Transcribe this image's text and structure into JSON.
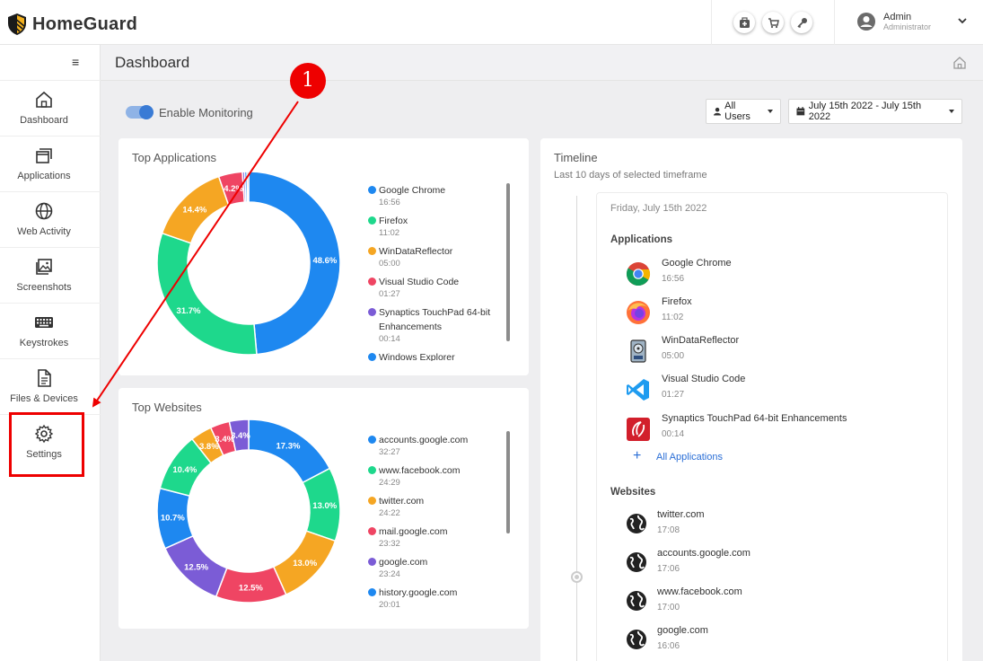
{
  "app": {
    "brand": "HomeGuard"
  },
  "header": {
    "icons": [
      "first-aid-icon",
      "cart-icon",
      "key-icon"
    ],
    "user": {
      "name": "Admin",
      "role": "Administrator"
    }
  },
  "sidebar": {
    "items": [
      {
        "label": "Dashboard",
        "icon": "home-icon"
      },
      {
        "label": "Applications",
        "icon": "windows-icon"
      },
      {
        "label": "Web Activity",
        "icon": "globe-icon"
      },
      {
        "label": "Screenshots",
        "icon": "image-icon"
      },
      {
        "label": "Keystrokes",
        "icon": "keyboard-icon"
      },
      {
        "label": "Files & Devices",
        "icon": "file-icon"
      },
      {
        "label": "Settings",
        "icon": "gear-icon"
      }
    ]
  },
  "page": {
    "title": "Dashboard"
  },
  "controls": {
    "monitoring_label": "Enable Monitoring",
    "users_dropdown": "All Users",
    "date_dropdown": "July 15th 2022 - July 15th 2022"
  },
  "top_applications": {
    "title": "Top Applications",
    "slices": [
      {
        "value": 48.6,
        "label": "48.6%",
        "color": "#1e88f0"
      },
      {
        "value": 31.7,
        "label": "31.7%",
        "color": "#1ed88c"
      },
      {
        "value": 14.4,
        "label": "14.4%",
        "color": "#f5a623"
      },
      {
        "value": 4.2,
        "label": "4.2%",
        "color": "#ef4563"
      },
      {
        "value": 0.4,
        "label": "",
        "color": "#7b5cd6"
      },
      {
        "value": 0.4,
        "label": "",
        "color": "#1e88f0"
      },
      {
        "value": 0.3,
        "label": "",
        "color": "#8a8a8a"
      }
    ],
    "legend": [
      {
        "name": "Google Chrome",
        "time": "16:56",
        "color": "#1e88f0"
      },
      {
        "name": "Firefox",
        "time": "11:02",
        "color": "#1ed88c"
      },
      {
        "name": "WinDataReflector",
        "time": "05:00",
        "color": "#f5a623"
      },
      {
        "name": "Visual Studio Code",
        "time": "01:27",
        "color": "#ef4563"
      },
      {
        "name": "Synaptics TouchPad 64-bit Enhancements",
        "time": "00:14",
        "color": "#7b5cd6"
      },
      {
        "name": "Windows Explorer",
        "time": "",
        "color": "#1e88f0"
      }
    ]
  },
  "top_websites": {
    "title": "Top Websites",
    "slices": [
      {
        "value": 17.3,
        "label": "17.3%",
        "color": "#1e88f0"
      },
      {
        "value": 13.0,
        "label": "13.0%",
        "color": "#1ed88c"
      },
      {
        "value": 13.0,
        "label": "13.0%",
        "color": "#f5a623"
      },
      {
        "value": 12.5,
        "label": "12.5%",
        "color": "#ef4563"
      },
      {
        "value": 12.5,
        "label": "12.5%",
        "color": "#7b5cd6"
      },
      {
        "value": 10.7,
        "label": "10.7%",
        "color": "#1e88f0"
      },
      {
        "value": 10.4,
        "label": "10.4%",
        "color": "#1ed88c"
      },
      {
        "value": 3.8,
        "label": "3.8%",
        "color": "#f5a623"
      },
      {
        "value": 3.4,
        "label": "3.4%",
        "color": "#ef4563"
      },
      {
        "value": 3.4,
        "label": "3.4%",
        "color": "#7b5cd6"
      }
    ],
    "legend": [
      {
        "name": "accounts.google.com",
        "time": "32:27",
        "color": "#1e88f0"
      },
      {
        "name": "www.facebook.com",
        "time": "24:29",
        "color": "#1ed88c"
      },
      {
        "name": "twitter.com",
        "time": "24:22",
        "color": "#f5a623"
      },
      {
        "name": "mail.google.com",
        "time": "23:32",
        "color": "#ef4563"
      },
      {
        "name": "google.com",
        "time": "23:24",
        "color": "#7b5cd6"
      },
      {
        "name": "history.google.com",
        "time": "20:01",
        "color": "#1e88f0"
      }
    ]
  },
  "timeline": {
    "title": "Timeline",
    "subtitle": "Last 10 days of selected timeframe",
    "date": "Friday, July 15th 2022",
    "applications_heading": "Applications",
    "applications": [
      {
        "name": "Google Chrome",
        "time": "16:56",
        "icon": "chrome-icon"
      },
      {
        "name": "Firefox",
        "time": "11:02",
        "icon": "firefox-icon"
      },
      {
        "name": "WinDataReflector",
        "time": "05:00",
        "icon": "drive-icon"
      },
      {
        "name": "Visual Studio Code",
        "time": "01:27",
        "icon": "vscode-icon"
      },
      {
        "name": "Synaptics TouchPad 64-bit Enhancements",
        "time": "00:14",
        "icon": "synaptics-icon"
      }
    ],
    "all_apps_link": "All Applications",
    "websites_heading": "Websites",
    "websites": [
      {
        "name": "twitter.com",
        "time": "17:08"
      },
      {
        "name": "accounts.google.com",
        "time": "17:06"
      },
      {
        "name": "www.facebook.com",
        "time": "17:00"
      },
      {
        "name": "google.com",
        "time": "16:06"
      }
    ]
  },
  "annotation": {
    "step": "1",
    "color": "#e00000"
  }
}
